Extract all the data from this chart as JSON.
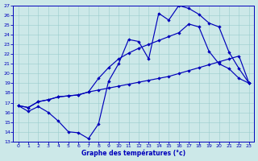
{
  "xlabel": "Graphe des températures (°c)",
  "xlim_min": -0.5,
  "xlim_max": 23.5,
  "ylim_min": 13,
  "ylim_max": 27,
  "xticks": [
    0,
    1,
    2,
    3,
    4,
    5,
    6,
    7,
    8,
    9,
    10,
    11,
    12,
    13,
    14,
    15,
    16,
    17,
    18,
    19,
    20,
    21,
    22,
    23
  ],
  "yticks": [
    13,
    14,
    15,
    16,
    17,
    18,
    19,
    20,
    21,
    22,
    23,
    24,
    25,
    26,
    27
  ],
  "background_color": "#cce8e8",
  "line_color": "#0000bb",
  "line_min_x": [
    0,
    1,
    2,
    3,
    4,
    5,
    6,
    7,
    8,
    9,
    10,
    11,
    12,
    13,
    14,
    15,
    16,
    17,
    18,
    19,
    20,
    21,
    22,
    23
  ],
  "line_min_y": [
    16.7,
    16.1,
    16.6,
    16.0,
    15.1,
    14.0,
    13.9,
    13.3,
    14.8,
    19.2,
    21.0,
    23.5,
    23.3,
    21.5,
    26.2,
    25.5,
    27.0,
    26.7,
    26.1,
    25.2,
    24.8,
    22.2,
    20.5,
    19.0
  ],
  "line_max_x": [
    0,
    1,
    2,
    3,
    4,
    5,
    6,
    7,
    8,
    9,
    10,
    11,
    12,
    13,
    14,
    15,
    16,
    17,
    18,
    19,
    20,
    21,
    22,
    23
  ],
  "line_max_y": [
    16.7,
    16.5,
    17.1,
    17.3,
    17.6,
    17.7,
    17.8,
    18.1,
    19.5,
    20.6,
    21.5,
    22.1,
    22.6,
    23.0,
    23.4,
    23.8,
    24.2,
    25.1,
    24.8,
    22.3,
    21.0,
    20.5,
    19.5,
    19.0
  ],
  "line_avg_x": [
    0,
    1,
    2,
    3,
    4,
    5,
    6,
    7,
    8,
    9,
    10,
    11,
    12,
    13,
    14,
    15,
    16,
    17,
    18,
    19,
    20,
    21,
    22,
    23
  ],
  "line_avg_y": [
    16.7,
    16.5,
    17.1,
    17.3,
    17.6,
    17.7,
    17.8,
    18.1,
    18.3,
    18.5,
    18.7,
    18.9,
    19.1,
    19.3,
    19.5,
    19.7,
    20.0,
    20.3,
    20.6,
    20.9,
    21.2,
    21.5,
    21.8,
    19.0
  ]
}
